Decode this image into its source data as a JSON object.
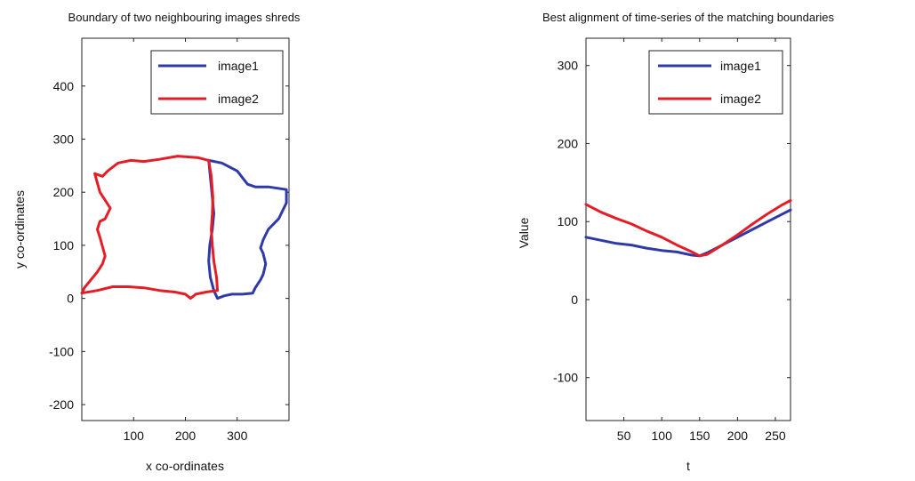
{
  "chart_data": [
    {
      "type": "line",
      "title": "Boundary of two neighbouring images shreds",
      "xlabel": "x co-ordinates",
      "ylabel": "y co-ordinates",
      "xlim": [
        0,
        400
      ],
      "ylim": [
        -230,
        490
      ],
      "xticks": [
        100,
        200,
        300
      ],
      "yticks": [
        -200,
        -100,
        0,
        100,
        200,
        300,
        400
      ],
      "legend_position": "top-right",
      "grid": false,
      "series": [
        {
          "name": "image1",
          "color": "#2f3aa8",
          "points": [
            [
              245,
              260
            ],
            [
              270,
              255
            ],
            [
              300,
              240
            ],
            [
              320,
              215
            ],
            [
              335,
              210
            ],
            [
              360,
              210
            ],
            [
              395,
              205
            ],
            [
              395,
              180
            ],
            [
              380,
              150
            ],
            [
              360,
              130
            ],
            [
              350,
              110
            ],
            [
              345,
              95
            ],
            [
              350,
              85
            ],
            [
              355,
              65
            ],
            [
              350,
              45
            ],
            [
              345,
              35
            ],
            [
              335,
              20
            ],
            [
              330,
              10
            ],
            [
              310,
              8
            ],
            [
              290,
              8
            ],
            [
              275,
              5
            ],
            [
              262,
              0
            ],
            [
              255,
              15
            ],
            [
              248,
              40
            ],
            [
              245,
              70
            ],
            [
              247,
              100
            ],
            [
              252,
              130
            ],
            [
              255,
              160
            ],
            [
              252,
              190
            ],
            [
              248,
              230
            ],
            [
              245,
              260
            ]
          ]
        },
        {
          "name": "image2",
          "color": "#e41e26",
          "points": [
            [
              245,
              260
            ],
            [
              225,
              265
            ],
            [
              185,
              268
            ],
            [
              150,
              262
            ],
            [
              120,
              258
            ],
            [
              95,
              260
            ],
            [
              70,
              255
            ],
            [
              50,
              240
            ],
            [
              40,
              230
            ],
            [
              25,
              235
            ],
            [
              35,
              200
            ],
            [
              55,
              170
            ],
            [
              45,
              150
            ],
            [
              35,
              145
            ],
            [
              30,
              130
            ],
            [
              35,
              115
            ],
            [
              45,
              80
            ],
            [
              40,
              65
            ],
            [
              30,
              50
            ],
            [
              5,
              20
            ],
            [
              0,
              10
            ],
            [
              30,
              15
            ],
            [
              60,
              22
            ],
            [
              90,
              22
            ],
            [
              120,
              20
            ],
            [
              150,
              15
            ],
            [
              180,
              12
            ],
            [
              200,
              8
            ],
            [
              210,
              0
            ],
            [
              220,
              8
            ],
            [
              240,
              12
            ],
            [
              262,
              15
            ],
            [
              260,
              40
            ],
            [
              255,
              70
            ],
            [
              252,
              100
            ],
            [
              250,
              130
            ],
            [
              252,
              160
            ],
            [
              253,
              190
            ],
            [
              250,
              230
            ],
            [
              245,
              260
            ]
          ]
        }
      ]
    },
    {
      "type": "line",
      "title": "Best alignment of time-series of the matching boundaries",
      "xlabel": "t",
      "ylabel": "Value",
      "xlim": [
        0,
        270
      ],
      "ylim": [
        -155,
        335
      ],
      "xticks": [
        50,
        100,
        150,
        200,
        250
      ],
      "yticks": [
        -100,
        0,
        100,
        200,
        300
      ],
      "legend_position": "top-right",
      "grid": false,
      "series": [
        {
          "name": "image1",
          "color": "#2f3aa8",
          "x": [
            0,
            20,
            40,
            60,
            80,
            100,
            120,
            140,
            150,
            160,
            180,
            200,
            220,
            240,
            260,
            270
          ],
          "y": [
            80,
            76,
            72,
            70,
            66,
            63,
            61,
            57,
            56,
            60,
            70,
            80,
            90,
            100,
            110,
            115
          ]
        },
        {
          "name": "image2",
          "color": "#e41e26",
          "x": [
            0,
            20,
            40,
            60,
            80,
            100,
            120,
            140,
            150,
            160,
            180,
            200,
            220,
            240,
            260,
            270
          ],
          "y": [
            122,
            112,
            104,
            97,
            88,
            80,
            70,
            61,
            56,
            58,
            70,
            83,
            97,
            110,
            122,
            127
          ]
        }
      ]
    }
  ]
}
